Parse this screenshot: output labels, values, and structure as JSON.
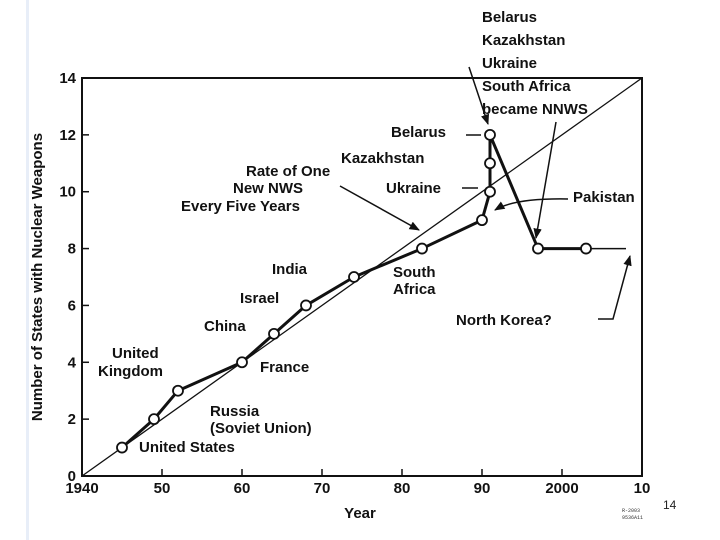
{
  "chart_data": {
    "type": "line",
    "title": "",
    "xlabel": "Year",
    "ylabel": "Number of States with Nuclear Weapons",
    "xlim": [
      1940,
      2010
    ],
    "ylim": [
      0,
      14
    ],
    "x_tick_labels": [
      "1940",
      "50",
      "60",
      "70",
      "80",
      "90",
      "2000",
      "10"
    ],
    "y_tick_labels": [
      "0",
      "2",
      "4",
      "6",
      "8",
      "10",
      "12",
      "14"
    ],
    "series": [
      {
        "points": [
          {
            "x": 1945,
            "y": 1
          },
          {
            "x": 1949,
            "y": 2
          },
          {
            "x": 1952,
            "y": 3
          },
          {
            "x": 1960,
            "y": 4
          },
          {
            "x": 1964,
            "y": 5
          },
          {
            "x": 1968,
            "y": 6
          },
          {
            "x": 1974,
            "y": 7
          },
          {
            "x": 1982.5,
            "y": 8
          },
          {
            "x": 1990,
            "y": 9
          },
          {
            "x": 1991,
            "y": 10
          },
          {
            "x": 1991,
            "y": 11
          },
          {
            "x": 1991,
            "y": 12
          },
          {
            "x": 1997,
            "y": 8
          },
          {
            "x": 2003,
            "y": 8
          }
        ],
        "projection": {
          "x": [
            2003,
            2008
          ],
          "y": [
            8,
            8
          ]
        }
      }
    ],
    "reference_line": {
      "x": [
        1940,
        2010
      ],
      "y": [
        0,
        14
      ]
    },
    "annotations": [
      "United States",
      "Russia",
      "(Soviet Union)",
      "United",
      "Kingdom",
      "France",
      "China",
      "Israel",
      "India",
      "South",
      "Africa",
      "Rate of One",
      "New NWS",
      "Every Five Years",
      "Belarus",
      "Kazakhstan",
      "Ukraine",
      "Pakistan",
      "North Korea?"
    ],
    "callout_lines": [
      "Belarus",
      "Kazakhstan",
      "Ukraine",
      "South Africa",
      "became NNWS"
    ],
    "source_code": [
      "R-2003",
      "9536A11"
    ],
    "grid": false
  },
  "page_number": "14"
}
